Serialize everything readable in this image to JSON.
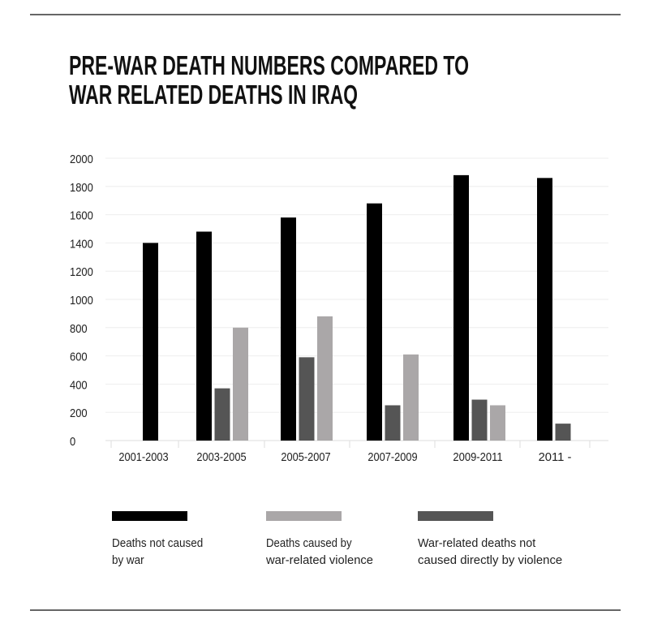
{
  "chart_data": {
    "type": "bar",
    "title_lines": [
      "PRE-WAR DEATH NUMBERS COMPARED TO",
      "WAR RELATED DEATHS IN IRAQ"
    ],
    "categories": [
      "2001-2003",
      "2003-2005",
      "2005-2007",
      "2007-2009",
      "2009-2011",
      "2011 -"
    ],
    "ylim": [
      0,
      2000
    ],
    "yticks": [
      0,
      200,
      400,
      600,
      800,
      1000,
      1200,
      1400,
      1600,
      1800,
      2000
    ],
    "grid": true,
    "legend_placement": "bottom",
    "series": [
      {
        "name": "Deaths not caused by war",
        "legend_lines": [
          "Deaths not caused",
          "by war"
        ],
        "color": "#000000",
        "values": [
          1400,
          1480,
          1580,
          1680,
          1880,
          1860
        ]
      },
      {
        "name": "War-related deaths not caused directly by violence",
        "legend_lines": [
          "War-related deaths not",
          "caused directly by violence"
        ],
        "color": "#555555",
        "values": [
          null,
          370,
          590,
          250,
          290,
          120
        ]
      },
      {
        "name": "Deaths caused by war-related violence",
        "legend_lines": [
          "Deaths caused by",
          "war-related violence"
        ],
        "color": "#aaa7a8",
        "values": [
          null,
          800,
          880,
          610,
          250,
          null
        ]
      }
    ],
    "legend_order": [
      0,
      2,
      1
    ]
  }
}
